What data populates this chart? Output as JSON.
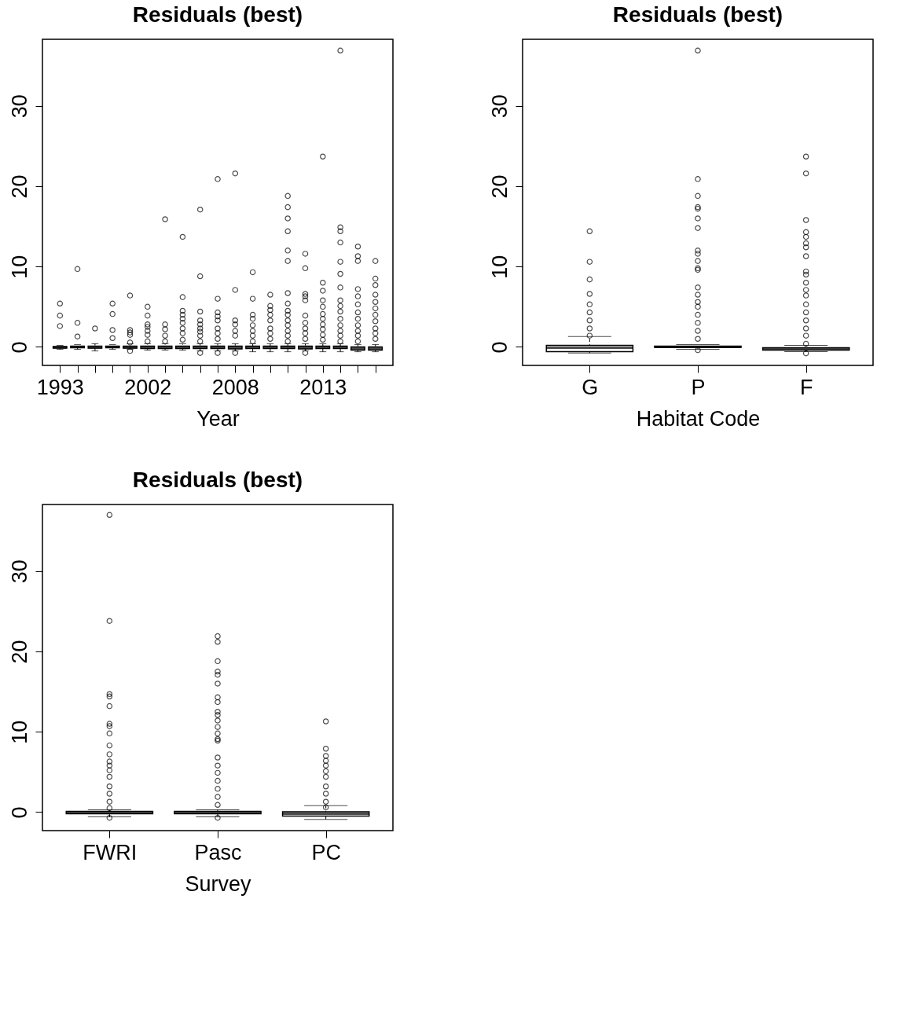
{
  "chart_data": [
    {
      "type": "box",
      "title": "Residuals (best)",
      "xlabel": "Year",
      "categories": [
        "1993",
        null,
        null,
        null,
        null,
        "2002",
        null,
        null,
        null,
        null,
        "2008",
        null,
        null,
        null,
        null,
        "2013",
        null,
        null,
        null
      ],
      "ylim": [
        -2.3,
        38.3
      ],
      "yticks": [
        0,
        10,
        20,
        30
      ],
      "grid": false,
      "boxes": [
        {
          "low": -0.3,
          "q1": -0.15,
          "median": -0.05,
          "q3": 0.05,
          "high": 0.2,
          "outliers": [
            5.4,
            3.9,
            2.6
          ]
        },
        {
          "low": -0.3,
          "q1": -0.1,
          "median": 0.0,
          "q3": 0.1,
          "high": 0.3,
          "outliers": [
            9.7,
            3.0,
            1.3
          ]
        },
        {
          "low": -0.5,
          "q1": -0.15,
          "median": -0.05,
          "q3": 0.1,
          "high": 0.4,
          "outliers": [
            2.3
          ]
        },
        {
          "low": -0.3,
          "q1": -0.1,
          "median": 0.0,
          "q3": 0.1,
          "high": 0.3,
          "outliers": [
            5.4,
            4.1,
            2.1,
            1.1
          ]
        },
        {
          "low": -0.3,
          "q1": -0.15,
          "median": -0.05,
          "q3": 0.1,
          "high": 0.4,
          "outliers": [
            6.4,
            2.1,
            1.8,
            1.5,
            0.55,
            -0.5
          ]
        },
        {
          "low": -0.4,
          "q1": -0.2,
          "median": -0.05,
          "q3": 0.1,
          "high": 0.4,
          "outliers": [
            5.0,
            3.9,
            2.8,
            2.5,
            2.0,
            1.5,
            0.7
          ]
        },
        {
          "low": -0.4,
          "q1": -0.2,
          "median": -0.05,
          "q3": 0.1,
          "high": 0.4,
          "outliers": [
            15.9,
            2.8,
            2.2,
            1.4,
            0.7
          ]
        },
        {
          "low": -0.4,
          "q1": -0.2,
          "median": -0.05,
          "q3": 0.1,
          "high": 0.4,
          "outliers": [
            13.7,
            6.2,
            4.5,
            4.0,
            3.5,
            3.0,
            2.3,
            1.7,
            0.9
          ]
        },
        {
          "low": -0.5,
          "q1": -0.2,
          "median": -0.05,
          "q3": 0.1,
          "high": 0.4,
          "outliers": [
            17.1,
            8.8,
            4.4,
            3.3,
            2.8,
            2.3,
            1.9,
            1.4,
            0.7,
            -0.75
          ]
        },
        {
          "low": -0.5,
          "q1": -0.2,
          "median": -0.05,
          "q3": 0.1,
          "high": 0.4,
          "outliers": [
            20.9,
            6.0,
            4.3,
            3.8,
            3.3,
            2.3,
            1.7,
            1.0,
            -0.75
          ]
        },
        {
          "low": -0.5,
          "q1": -0.25,
          "median": -0.1,
          "q3": 0.1,
          "high": 0.4,
          "outliers": [
            21.6,
            7.1,
            3.3,
            2.8,
            2.0,
            1.4,
            -0.75
          ]
        },
        {
          "low": -0.6,
          "q1": -0.2,
          "median": -0.05,
          "q3": 0.1,
          "high": 0.4,
          "outliers": [
            9.3,
            6.0,
            4.0,
            3.5,
            2.7,
            2.0,
            1.4,
            0.7
          ]
        },
        {
          "low": -0.6,
          "q1": -0.2,
          "median": -0.05,
          "q3": 0.1,
          "high": 0.4,
          "outliers": [
            6.5,
            5.1,
            4.6,
            4.0,
            3.3,
            2.3,
            1.7,
            1.0
          ]
        },
        {
          "low": -0.6,
          "q1": -0.2,
          "median": -0.05,
          "q3": 0.1,
          "high": 0.4,
          "outliers": [
            18.8,
            17.4,
            16.0,
            14.4,
            12.0,
            10.7,
            6.7,
            5.4,
            4.5,
            4.0,
            3.3,
            2.7,
            2.0,
            1.4,
            0.7
          ]
        },
        {
          "low": -0.5,
          "q1": -0.25,
          "median": -0.1,
          "q3": 0.1,
          "high": 0.4,
          "outliers": [
            11.6,
            9.8,
            6.6,
            6.3,
            5.8,
            3.9,
            3.0,
            2.3,
            1.7,
            1.0,
            -0.75
          ]
        },
        {
          "low": -0.6,
          "q1": -0.2,
          "median": -0.05,
          "q3": 0.1,
          "high": 0.4,
          "outliers": [
            23.7,
            8.0,
            7.0,
            5.8,
            5.0,
            4.1,
            3.5,
            2.8,
            2.2,
            1.5,
            0.9
          ]
        },
        {
          "low": -0.6,
          "q1": -0.2,
          "median": -0.05,
          "q3": 0.1,
          "high": 0.4,
          "outliers": [
            36.9,
            14.9,
            14.4,
            13.0,
            10.6,
            9.1,
            7.4,
            5.8,
            5.1,
            4.4,
            3.5,
            2.7,
            2.0,
            1.4,
            0.7
          ]
        },
        {
          "low": -0.6,
          "q1": -0.4,
          "median": -0.2,
          "q3": 0.0,
          "high": 0.3,
          "outliers": [
            12.5,
            11.3,
            10.7,
            7.2,
            6.3,
            5.3,
            4.3,
            3.5,
            2.7,
            2.0,
            1.4,
            0.7
          ]
        },
        {
          "low": -0.6,
          "q1": -0.4,
          "median": -0.2,
          "q3": 0.0,
          "high": 0.3,
          "outliers": [
            10.7,
            8.5,
            7.7,
            6.5,
            5.6,
            4.8,
            4.0,
            3.2,
            2.3,
            1.7,
            1.0
          ]
        }
      ]
    },
    {
      "type": "box",
      "title": "Residuals (best)",
      "xlabel": "Habitat Code",
      "categories": [
        "G",
        "P",
        "F"
      ],
      "ylim": [
        -2.3,
        38.3
      ],
      "yticks": [
        0,
        10,
        20,
        30
      ],
      "grid": false,
      "boxes": [
        {
          "low": -0.75,
          "q1": -0.6,
          "median": -0.1,
          "q3": 0.2,
          "high": 1.3,
          "outliers": [
            14.4,
            10.6,
            8.4,
            6.6,
            5.3,
            4.3,
            3.3,
            2.3,
            1.4
          ]
        },
        {
          "low": -0.3,
          "q1": -0.05,
          "median": 0.0,
          "q3": 0.1,
          "high": 0.3,
          "outliers": [
            36.9,
            20.9,
            18.8,
            17.4,
            17.2,
            16.0,
            14.8,
            12.0,
            11.6,
            10.7,
            9.8,
            9.6,
            7.4,
            6.5,
            5.6,
            5.0,
            4.0,
            3.0,
            2.0,
            1.0,
            -0.4
          ]
        },
        {
          "low": -0.6,
          "q1": -0.4,
          "median": -0.3,
          "q3": -0.1,
          "high": 0.2,
          "outliers": [
            23.7,
            21.6,
            15.8,
            14.3,
            13.7,
            12.9,
            12.4,
            11.3,
            9.4,
            9.0,
            8.0,
            7.1,
            6.4,
            5.3,
            4.3,
            3.3,
            2.3,
            1.4,
            0.4,
            -0.8
          ]
        }
      ]
    },
    {
      "type": "box",
      "title": "Residuals (best)",
      "xlabel": "Survey",
      "categories": [
        "FWRI",
        "Pasc",
        "PC"
      ],
      "ylim": [
        -2.3,
        38.3
      ],
      "yticks": [
        0,
        10,
        20,
        30
      ],
      "grid": false,
      "boxes": [
        {
          "low": -0.6,
          "q1": -0.2,
          "median": -0.1,
          "q3": 0.1,
          "high": 0.3,
          "outliers": [
            37.0,
            23.8,
            14.7,
            14.4,
            13.2,
            11.0,
            10.7,
            9.8,
            8.3,
            7.2,
            6.3,
            5.8,
            5.2,
            4.4,
            3.2,
            2.3,
            1.3,
            0.5,
            -0.7
          ]
        },
        {
          "low": -0.6,
          "q1": -0.2,
          "median": -0.1,
          "q3": 0.1,
          "high": 0.3,
          "outliers": [
            21.9,
            21.2,
            18.8,
            17.5,
            17.1,
            16.0,
            14.3,
            13.7,
            12.5,
            12.1,
            11.4,
            10.6,
            9.8,
            9.1,
            8.9,
            6.8,
            5.8,
            4.9,
            3.9,
            2.9,
            1.9,
            0.9,
            -0.7
          ]
        },
        {
          "low": -0.9,
          "q1": -0.5,
          "median": -0.2,
          "q3": 0.05,
          "high": 0.8,
          "outliers": [
            11.3,
            7.9,
            7.0,
            6.4,
            5.8,
            5.1,
            4.4,
            3.2,
            2.3,
            1.3,
            0.6
          ]
        }
      ]
    }
  ]
}
